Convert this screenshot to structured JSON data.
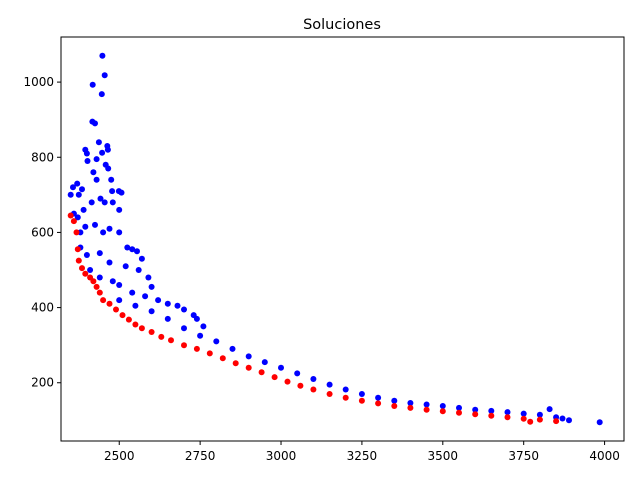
{
  "chart_data": {
    "type": "scatter",
    "title": "Soluciones",
    "xlabel": "",
    "ylabel": "",
    "xlim": [
      2320,
      4060
    ],
    "ylim": [
      45,
      1120
    ],
    "xticks": [
      2500,
      2750,
      3000,
      3250,
      3500,
      3750,
      4000
    ],
    "yticks": [
      200,
      400,
      600,
      800,
      1000
    ],
    "grid": false,
    "legend": "none",
    "series": [
      {
        "color": "#0000ff",
        "points": [
          [
            2448,
            1070
          ],
          [
            2455,
            1018
          ],
          [
            2418,
            993
          ],
          [
            2446,
            968
          ],
          [
            2417,
            895
          ],
          [
            2425,
            890
          ],
          [
            2437,
            840
          ],
          [
            2463,
            830
          ],
          [
            2395,
            820
          ],
          [
            2400,
            810
          ],
          [
            2447,
            812
          ],
          [
            2465,
            820
          ],
          [
            2402,
            790
          ],
          [
            2430,
            795
          ],
          [
            2458,
            780
          ],
          [
            2466,
            770
          ],
          [
            2357,
            720
          ],
          [
            2370,
            730
          ],
          [
            2385,
            715
          ],
          [
            2350,
            700
          ],
          [
            2375,
            700
          ],
          [
            2420,
            760
          ],
          [
            2430,
            740
          ],
          [
            2475,
            740
          ],
          [
            2478,
            710
          ],
          [
            2499,
            710
          ],
          [
            2507,
            706
          ],
          [
            2360,
            650
          ],
          [
            2372,
            640
          ],
          [
            2390,
            660
          ],
          [
            2415,
            680
          ],
          [
            2442,
            690
          ],
          [
            2455,
            680
          ],
          [
            2480,
            680
          ],
          [
            2500,
            660
          ],
          [
            2380,
            600
          ],
          [
            2395,
            615
          ],
          [
            2425,
            620
          ],
          [
            2450,
            600
          ],
          [
            2470,
            610
          ],
          [
            2500,
            600
          ],
          [
            2525,
            560
          ],
          [
            2540,
            555
          ],
          [
            2555,
            550
          ],
          [
            2570,
            530
          ],
          [
            2380,
            560
          ],
          [
            2400,
            540
          ],
          [
            2440,
            545
          ],
          [
            2470,
            520
          ],
          [
            2520,
            510
          ],
          [
            2560,
            500
          ],
          [
            2590,
            480
          ],
          [
            2600,
            455
          ],
          [
            2410,
            500
          ],
          [
            2440,
            480
          ],
          [
            2480,
            470
          ],
          [
            2500,
            460
          ],
          [
            2540,
            440
          ],
          [
            2580,
            430
          ],
          [
            2620,
            420
          ],
          [
            2650,
            410
          ],
          [
            2680,
            405
          ],
          [
            2700,
            395
          ],
          [
            2730,
            380
          ],
          [
            2740,
            370
          ],
          [
            2760,
            350
          ],
          [
            2500,
            420
          ],
          [
            2550,
            405
          ],
          [
            2600,
            390
          ],
          [
            2650,
            370
          ],
          [
            2700,
            345
          ],
          [
            2750,
            325
          ],
          [
            2800,
            310
          ],
          [
            2850,
            290
          ],
          [
            2900,
            270
          ],
          [
            2950,
            255
          ],
          [
            3000,
            240
          ],
          [
            3050,
            225
          ],
          [
            3100,
            210
          ],
          [
            3150,
            195
          ],
          [
            3200,
            182
          ],
          [
            3250,
            170
          ],
          [
            3300,
            160
          ],
          [
            3350,
            152
          ],
          [
            3400,
            146
          ],
          [
            3450,
            142
          ],
          [
            3500,
            138
          ],
          [
            3550,
            133
          ],
          [
            3600,
            128
          ],
          [
            3650,
            125
          ],
          [
            3700,
            122
          ],
          [
            3750,
            118
          ],
          [
            3800,
            115
          ],
          [
            3830,
            130
          ],
          [
            3850,
            108
          ],
          [
            3870,
            105
          ],
          [
            3890,
            100
          ],
          [
            3985,
            95
          ]
        ]
      },
      {
        "color": "#ff0000",
        "points": [
          [
            2350,
            645
          ],
          [
            2360,
            630
          ],
          [
            2368,
            600
          ],
          [
            2372,
            555
          ],
          [
            2375,
            525
          ],
          [
            2385,
            505
          ],
          [
            2395,
            490
          ],
          [
            2410,
            480
          ],
          [
            2420,
            470
          ],
          [
            2430,
            455
          ],
          [
            2440,
            440
          ],
          [
            2450,
            420
          ],
          [
            2470,
            410
          ],
          [
            2490,
            395
          ],
          [
            2510,
            380
          ],
          [
            2530,
            368
          ],
          [
            2550,
            355
          ],
          [
            2570,
            345
          ],
          [
            2600,
            335
          ],
          [
            2630,
            322
          ],
          [
            2660,
            313
          ],
          [
            2700,
            300
          ],
          [
            2740,
            290
          ],
          [
            2780,
            278
          ],
          [
            2820,
            265
          ],
          [
            2860,
            252
          ],
          [
            2900,
            240
          ],
          [
            2940,
            228
          ],
          [
            2980,
            215
          ],
          [
            3020,
            203
          ],
          [
            3060,
            192
          ],
          [
            3100,
            182
          ],
          [
            3150,
            170
          ],
          [
            3200,
            160
          ],
          [
            3250,
            152
          ],
          [
            3300,
            145
          ],
          [
            3350,
            138
          ],
          [
            3400,
            133
          ],
          [
            3450,
            128
          ],
          [
            3500,
            124
          ],
          [
            3550,
            120
          ],
          [
            3600,
            116
          ],
          [
            3650,
            112
          ],
          [
            3700,
            108
          ],
          [
            3750,
            104
          ],
          [
            3770,
            96
          ],
          [
            3800,
            102
          ],
          [
            3850,
            98
          ]
        ]
      }
    ]
  }
}
